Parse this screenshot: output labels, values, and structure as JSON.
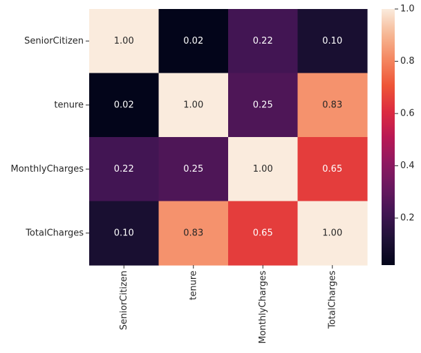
{
  "chart_data": {
    "type": "heatmap",
    "title": "",
    "xlabel": "",
    "ylabel": "",
    "x_categories": [
      "SeniorCitizen",
      "tenure",
      "MonthlyCharges",
      "TotalCharges"
    ],
    "y_categories": [
      "SeniorCitizen",
      "tenure",
      "MonthlyCharges",
      "TotalCharges"
    ],
    "values": [
      [
        1.0,
        0.02,
        0.22,
        0.1
      ],
      [
        0.02,
        1.0,
        0.25,
        0.83
      ],
      [
        0.22,
        0.25,
        1.0,
        0.65
      ],
      [
        0.1,
        0.83,
        0.65,
        1.0
      ]
    ],
    "value_labels": [
      [
        "1.00",
        "0.02",
        "0.22",
        "0.10"
      ],
      [
        "0.02",
        "1.00",
        "0.25",
        "0.83"
      ],
      [
        "0.22",
        "0.25",
        "1.00",
        "0.65"
      ],
      [
        "0.10",
        "0.83",
        "0.65",
        "1.00"
      ]
    ],
    "colorscale": "rocket",
    "color_range": [
      0.02,
      1.0
    ],
    "colorbar_ticks": [
      0.2,
      0.4,
      0.6,
      0.8,
      1.0
    ],
    "colorbar_tick_labels": [
      "0.2",
      "0.4",
      "0.6",
      "0.8",
      "1.0"
    ],
    "grid": false,
    "legend": "colorbar-right"
  }
}
